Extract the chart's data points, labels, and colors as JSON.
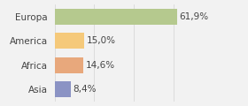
{
  "categories": [
    "Asia",
    "Africa",
    "America",
    "Europa"
  ],
  "values": [
    8.4,
    14.6,
    15.0,
    61.9
  ],
  "labels": [
    "8,4%",
    "14,6%",
    "15,0%",
    "61,9%"
  ],
  "bar_colors": [
    "#8b93c4",
    "#e8a87c",
    "#f5c97a",
    "#b5c98e"
  ],
  "xlim": [
    0,
    75
  ],
  "background_color": "#f2f2f2",
  "bar_height": 0.65,
  "label_fontsize": 7.5,
  "tick_fontsize": 7.5,
  "grid_color": "#d8d8d8"
}
